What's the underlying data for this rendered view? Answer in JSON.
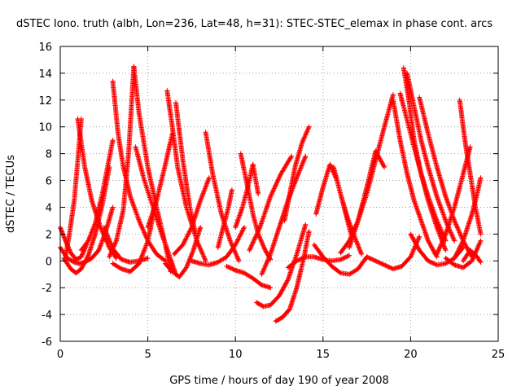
{
  "chart_data": {
    "type": "scatter",
    "title": "dSTEC Iono. truth (albh, Lon=236, Lat=48, h=31): STEC-STEC_elemax in phase cont. arcs",
    "xlabel": "GPS time / hours of day 190 of year 2008",
    "ylabel": "dSTEC  / TECUs",
    "xlim": [
      0,
      25
    ],
    "ylim": [
      -6,
      16
    ],
    "x_ticks": [
      0,
      5,
      10,
      15,
      20,
      25
    ],
    "y_ticks": [
      -6,
      -4,
      -2,
      0,
      2,
      4,
      6,
      8,
      10,
      12,
      14,
      16
    ],
    "x_tick_labels": [
      "0",
      "5",
      "10",
      "15",
      "20",
      "25"
    ],
    "y_tick_labels": [
      "-6",
      "-4",
      "-2",
      "0",
      "2",
      "4",
      "6",
      "8",
      "10",
      "12",
      "14",
      "16"
    ],
    "grid": true,
    "marker": "+",
    "color": "#ff0000",
    "series": [
      {
        "x": [
          0.0,
          0.3,
          0.6,
          0.9,
          1.2,
          1.5
        ],
        "y": [
          2.5,
          1.5,
          0.6,
          0.1,
          0.3,
          1.2
        ]
      },
      {
        "x": [
          0.0,
          0.4,
          0.8,
          1.1,
          1.4,
          1.8,
          2.2,
          2.6,
          3.0
        ],
        "y": [
          1.0,
          0.2,
          -0.1,
          -0.2,
          -0.1,
          0.2,
          0.8,
          2.2,
          4.0
        ]
      },
      {
        "x": [
          0.2,
          0.6,
          0.9,
          1.2,
          1.6,
          2.0,
          2.4,
          2.8
        ],
        "y": [
          0.2,
          -0.6,
          -0.9,
          -0.6,
          0.4,
          2.0,
          4.2,
          7.0
        ]
      },
      {
        "x": [
          0.3,
          0.5,
          0.8,
          1.0,
          1.2
        ],
        "y": [
          0.4,
          1.8,
          4.5,
          7.5,
          10.6
        ]
      },
      {
        "x": [
          1.0,
          1.4,
          1.8,
          2.3,
          2.8,
          3.2
        ],
        "y": [
          10.6,
          7.0,
          4.5,
          2.5,
          1.0,
          0.2
        ]
      },
      {
        "x": [
          1.2,
          1.6,
          2.0,
          2.4,
          2.7,
          3.0
        ],
        "y": [
          0.8,
          1.5,
          2.8,
          5.0,
          7.0,
          9.0
        ]
      },
      {
        "x": [
          2.5,
          3.0,
          3.5,
          4.0,
          4.5,
          5.0
        ],
        "y": [
          2.5,
          0.9,
          0.1,
          -0.1,
          0.0,
          0.2
        ]
      },
      {
        "x": [
          2.8,
          3.2,
          3.6,
          3.9,
          4.2
        ],
        "y": [
          0.3,
          1.5,
          3.8,
          8.0,
          14.5
        ]
      },
      {
        "x": [
          3.0,
          3.3,
          3.6,
          4.0,
          4.5,
          5.0,
          5.5,
          6.0
        ],
        "y": [
          13.4,
          9.5,
          7.0,
          4.8,
          3.0,
          1.5,
          0.5,
          0.0
        ]
      },
      {
        "x": [
          3.0,
          3.5,
          4.0,
          4.5,
          5.0,
          5.4
        ],
        "y": [
          -0.2,
          -0.6,
          -0.8,
          -0.2,
          1.5,
          4.0
        ]
      },
      {
        "x": [
          4.2,
          4.5,
          5.0,
          5.5,
          6.0,
          6.3
        ],
        "y": [
          14.5,
          11.0,
          7.0,
          4.0,
          1.2,
          -0.8
        ]
      },
      {
        "x": [
          4.3,
          4.8,
          5.3,
          5.8,
          6.2,
          6.6
        ],
        "y": [
          8.5,
          6.0,
          4.0,
          2.0,
          0.5,
          -1.0
        ]
      },
      {
        "x": [
          5.0,
          5.5,
          6.0,
          6.4
        ],
        "y": [
          2.5,
          4.5,
          7.2,
          9.5
        ]
      },
      {
        "x": [
          6.1,
          6.4,
          6.7,
          7.2,
          7.8,
          8.3
        ],
        "y": [
          12.7,
          10.0,
          7.0,
          4.0,
          1.5,
          0.0
        ]
      },
      {
        "x": [
          6.6,
          7.0,
          7.4,
          7.8
        ],
        "y": [
          11.8,
          7.5,
          4.0,
          1.5
        ]
      },
      {
        "x": [
          6.0,
          6.4,
          6.8,
          7.2,
          7.6,
          8.0
        ],
        "y": [
          -0.2,
          -0.8,
          -1.2,
          -0.5,
          0.8,
          2.5
        ]
      },
      {
        "x": [
          6.5,
          7.0,
          7.5,
          8.0,
          8.5
        ],
        "y": [
          0.5,
          1.2,
          2.5,
          4.5,
          6.2
        ]
      },
      {
        "x": [
          8.3,
          8.7,
          9.2,
          9.7,
          10.2
        ],
        "y": [
          9.6,
          6.5,
          3.5,
          1.5,
          0.0
        ]
      },
      {
        "x": [
          7.5,
          8.0,
          8.5,
          9.0,
          9.5,
          10.0,
          10.5
        ],
        "y": [
          0.0,
          -0.2,
          -0.3,
          -0.1,
          0.3,
          1.2,
          2.5
        ]
      },
      {
        "x": [
          9.0,
          9.3,
          9.6,
          9.8
        ],
        "y": [
          1.0,
          2.5,
          4.0,
          5.3
        ]
      },
      {
        "x": [
          9.5,
          10.0,
          10.5,
          11.0,
          11.5,
          12.0
        ],
        "y": [
          -0.4,
          -0.7,
          -0.9,
          -1.3,
          -1.8,
          -2.0
        ]
      },
      {
        "x": [
          10.3,
          10.7,
          11.0,
          11.3,
          11.7,
          12.0
        ],
        "y": [
          8.0,
          5.5,
          3.5,
          2.0,
          0.8,
          0.1
        ]
      },
      {
        "x": [
          10.0,
          10.4,
          10.8,
          11.0,
          11.3
        ],
        "y": [
          2.5,
          4.0,
          6.0,
          7.2,
          5.0
        ]
      },
      {
        "x": [
          11.2,
          11.6,
          12.0,
          12.5,
          13.0,
          13.5,
          14.0
        ],
        "y": [
          -3.1,
          -3.4,
          -3.3,
          -2.6,
          -1.4,
          0.5,
          2.7
        ]
      },
      {
        "x": [
          12.3,
          12.7,
          13.1,
          13.5,
          13.9,
          14.2
        ],
        "y": [
          -4.5,
          -4.2,
          -3.6,
          -2.0,
          0.2,
          2.2
        ]
      },
      {
        "x": [
          11.5,
          12.0,
          12.5,
          13.0,
          13.5,
          14.0
        ],
        "y": [
          -1.0,
          0.5,
          2.5,
          4.5,
          6.2,
          7.8
        ]
      },
      {
        "x": [
          12.8,
          13.1,
          13.4,
          13.8,
          14.2
        ],
        "y": [
          3.0,
          5.0,
          7.0,
          8.8,
          10.0
        ]
      },
      {
        "x": [
          10.8,
          11.4,
          12.0,
          12.6,
          13.2
        ],
        "y": [
          0.8,
          2.5,
          4.8,
          6.5,
          7.8
        ]
      },
      {
        "x": [
          13.0,
          13.5,
          14.0,
          14.5,
          15.0,
          15.5,
          16.0,
          16.5
        ],
        "y": [
          -0.5,
          0.0,
          0.3,
          0.3,
          0.1,
          0.0,
          0.1,
          0.4
        ]
      },
      {
        "x": [
          14.5,
          15.0,
          15.5,
          16.0,
          16.5,
          17.0,
          17.5
        ],
        "y": [
          1.2,
          0.3,
          -0.4,
          -0.9,
          -1.0,
          -0.6,
          0.3
        ]
      },
      {
        "x": [
          14.6,
          15.0,
          15.4,
          15.8,
          16.2,
          16.6
        ],
        "y": [
          3.5,
          5.5,
          7.2,
          6.0,
          4.0,
          2.0
        ]
      },
      {
        "x": [
          15.6,
          16.0,
          16.4,
          16.8,
          17.2
        ],
        "y": [
          7.0,
          5.0,
          3.2,
          1.8,
          0.5
        ]
      },
      {
        "x": [
          16.5,
          17.0,
          17.5,
          18.0,
          18.5
        ],
        "y": [
          1.0,
          3.0,
          5.5,
          8.2,
          7.0
        ]
      },
      {
        "x": [
          16.0,
          16.5,
          17.0,
          17.5,
          18.0,
          18.5,
          19.0
        ],
        "y": [
          0.6,
          1.5,
          3.0,
          5.0,
          7.5,
          10.0,
          12.4
        ]
      },
      {
        "x": [
          17.5,
          18.0,
          18.5,
          19.0,
          19.5,
          20.0,
          20.5
        ],
        "y": [
          0.3,
          0.0,
          -0.3,
          -0.6,
          -0.4,
          0.3,
          1.8
        ]
      },
      {
        "x": [
          19.0,
          19.4,
          19.8,
          20.2,
          20.6,
          21.0,
          21.5
        ],
        "y": [
          12.0,
          9.0,
          6.5,
          4.5,
          3.0,
          1.5,
          0.3
        ]
      },
      {
        "x": [
          19.6,
          19.9,
          20.2,
          20.6,
          21.0,
          21.5,
          22.0
        ],
        "y": [
          14.4,
          12.0,
          9.0,
          6.5,
          4.5,
          2.5,
          0.8
        ]
      },
      {
        "x": [
          19.4,
          19.8,
          20.2,
          20.6,
          21.0,
          21.5,
          22.0
        ],
        "y": [
          12.5,
          10.5,
          8.5,
          6.5,
          4.8,
          3.0,
          1.5
        ]
      },
      {
        "x": [
          20.0,
          20.5,
          21.0,
          21.5,
          22.0,
          22.5,
          23.0
        ],
        "y": [
          2.0,
          0.8,
          0.0,
          -0.3,
          -0.2,
          0.2,
          1.0
        ]
      },
      {
        "x": [
          20.5,
          21.0,
          21.5,
          22.0,
          22.5,
          23.0,
          23.5
        ],
        "y": [
          12.2,
          9.5,
          7.0,
          4.8,
          3.0,
          1.5,
          0.3
        ]
      },
      {
        "x": [
          21.5,
          22.0,
          22.5,
          23.0,
          23.4
        ],
        "y": [
          0.5,
          2.0,
          4.0,
          6.5,
          8.5
        ]
      },
      {
        "x": [
          22.0,
          22.5,
          23.0,
          23.5,
          24.0
        ],
        "y": [
          0.2,
          -0.3,
          -0.5,
          0.0,
          1.5
        ]
      },
      {
        "x": [
          22.8,
          23.1,
          23.4,
          23.7,
          24.0
        ],
        "y": [
          12.0,
          9.0,
          6.5,
          4.0,
          2.0
        ]
      },
      {
        "x": [
          22.5,
          23.0,
          23.5,
          23.8,
          24.0
        ],
        "y": [
          0.2,
          1.5,
          3.5,
          5.0,
          6.2
        ]
      },
      {
        "x": [
          23.0,
          23.4,
          23.8,
          24.0
        ],
        "y": [
          0.0,
          0.8,
          0.3,
          -0.1
        ]
      },
      {
        "x": [
          19.8,
          20.2,
          20.6,
          21.0,
          21.5,
          22.0,
          22.5
        ],
        "y": [
          14.0,
          11.5,
          9.0,
          7.0,
          4.8,
          3.0,
          1.5
        ]
      }
    ]
  }
}
